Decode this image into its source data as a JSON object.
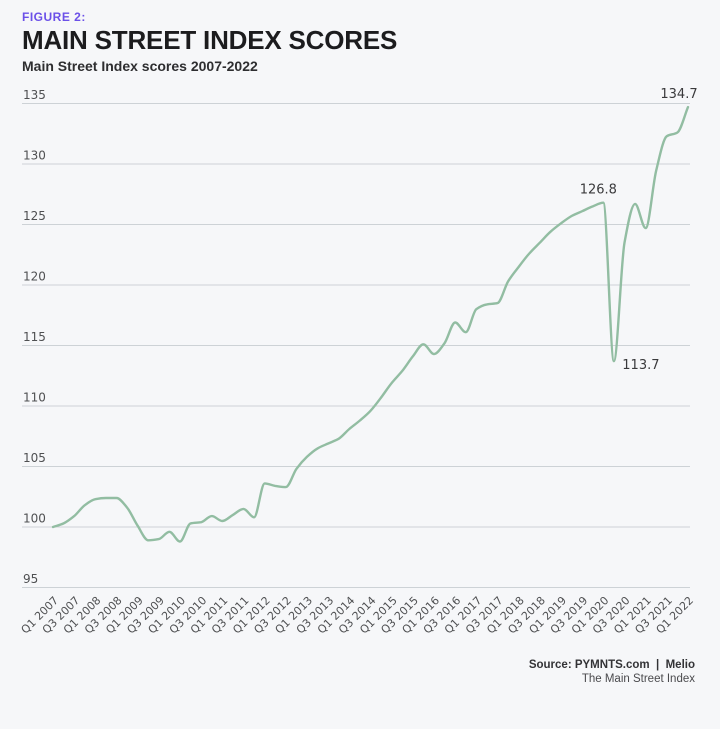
{
  "figure_label": "FIGURE 2:",
  "title": "MAIN STREET INDEX SCORES",
  "subtitle": "Main Street Index scores 2007-2022",
  "source": {
    "line1": "Source: PYMNTS.com  |  Melio",
    "line2": "The Main Street Index"
  },
  "colors": {
    "accent": "#6b50e8",
    "line": "#92bda2",
    "grid": "#cdd2d6",
    "axis_text": "#4f5052",
    "annotation_text": "#3a3a3c",
    "background": "#f6f7f9"
  },
  "chart_data": {
    "type": "line",
    "title": "Main Street Index scores 2007-2022",
    "xlabel": "",
    "ylabel": "",
    "ylim": [
      95,
      135
    ],
    "y_ticks": [
      95,
      100,
      105,
      110,
      115,
      120,
      125,
      130,
      135
    ],
    "grid": "horizontal gridlines on",
    "legend": "none",
    "x": [
      "Q1 2007",
      "Q2 2007",
      "Q3 2007",
      "Q4 2007",
      "Q1 2008",
      "Q2 2008",
      "Q3 2008",
      "Q4 2008",
      "Q1 2009",
      "Q2 2009",
      "Q3 2009",
      "Q4 2009",
      "Q1 2010",
      "Q2 2010",
      "Q3 2010",
      "Q4 2010",
      "Q1 2011",
      "Q2 2011",
      "Q3 2011",
      "Q4 2011",
      "Q1 2012",
      "Q2 2012",
      "Q3 2012",
      "Q4 2012",
      "Q1 2013",
      "Q2 2013",
      "Q3 2013",
      "Q4 2013",
      "Q1 2014",
      "Q2 2014",
      "Q3 2014",
      "Q4 2014",
      "Q1 2015",
      "Q2 2015",
      "Q3 2015",
      "Q4 2015",
      "Q1 2016",
      "Q2 2016",
      "Q3 2016",
      "Q4 2016",
      "Q1 2017",
      "Q2 2017",
      "Q3 2017",
      "Q4 2017",
      "Q1 2018",
      "Q2 2018",
      "Q3 2018",
      "Q4 2018",
      "Q1 2019",
      "Q2 2019",
      "Q3 2019",
      "Q4 2019",
      "Q1 2020",
      "Q2 2020",
      "Q3 2020",
      "Q4 2020",
      "Q1 2021",
      "Q2 2021",
      "Q3 2021",
      "Q4 2021",
      "Q1 2022"
    ],
    "values": [
      100.0,
      100.3,
      100.9,
      101.8,
      102.3,
      102.4,
      102.4,
      101.6,
      100.1,
      98.9,
      99.0,
      99.6,
      98.8,
      100.3,
      100.4,
      100.9,
      100.5,
      101.0,
      101.5,
      100.8,
      103.6,
      103.4,
      103.3,
      104.8,
      105.8,
      106.5,
      106.9,
      107.3,
      108.1,
      108.8,
      109.6,
      110.7,
      111.9,
      112.9,
      114.1,
      115.1,
      114.3,
      115.2,
      116.9,
      116.1,
      118.0,
      118.4,
      118.5,
      120.3,
      121.5,
      122.6,
      123.5,
      124.4,
      125.1,
      125.7,
      126.1,
      126.5,
      126.8,
      113.7,
      123.5,
      126.7,
      124.7,
      129.5,
      132.3,
      132.6,
      134.7
    ],
    "x_tick_labels": [
      "Q1 2007",
      "Q3 2007",
      "Q1 2008",
      "Q3 2008",
      "Q1 2009",
      "Q3 2009",
      "Q1 2010",
      "Q3 2010",
      "Q1 2011",
      "Q3 2011",
      "Q1 2012",
      "Q3 2012",
      "Q1 2013",
      "Q3 2013",
      "Q1 2014",
      "Q3 2014",
      "Q1 2015",
      "Q3 2015",
      "Q1 2016",
      "Q3 2016",
      "Q1 2017",
      "Q3 2017",
      "Q1 2018",
      "Q3 2018",
      "Q1 2019",
      "Q3 2019",
      "Q1 2020",
      "Q3 2020",
      "Q1 2021",
      "Q3 2021",
      "Q1 2022"
    ],
    "annotations": [
      {
        "x": "Q1 2020",
        "value": 126.8,
        "label": "126.8"
      },
      {
        "x": "Q2 2020",
        "value": 113.7,
        "label": "113.7"
      },
      {
        "x": "Q1 2022",
        "value": 134.7,
        "label": "134.7"
      }
    ]
  }
}
